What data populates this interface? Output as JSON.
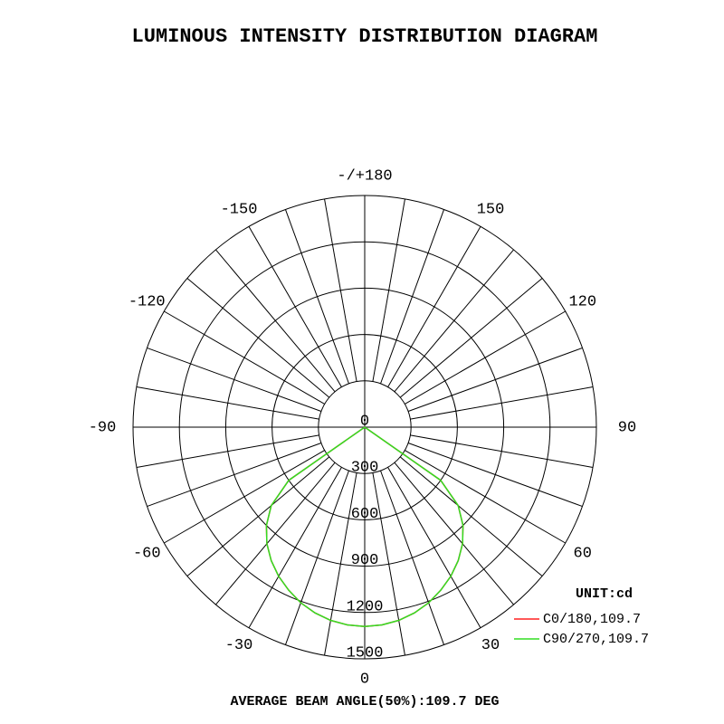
{
  "chart_data": {
    "type": "polar",
    "title": "LUMINOUS INTENSITY DISTRIBUTION DIAGRAM",
    "footer": "AVERAGE BEAM ANGLE(50%):109.7 DEG",
    "unit": "UNIT:cd",
    "rlim": [
      0,
      1500
    ],
    "rticks": [
      0,
      300,
      600,
      900,
      1200,
      1500
    ],
    "angle_ticks": [
      {
        "value": 180,
        "label": "-/+180"
      },
      150,
      120,
      90,
      60,
      30,
      0,
      -30,
      -60,
      -90,
      -120,
      -150
    ],
    "angles": [
      -90,
      -85,
      -80,
      -75,
      -70,
      -65,
      -60,
      -55,
      -50,
      -45,
      -40,
      -35,
      -30,
      -25,
      -20,
      -15,
      -10,
      -5,
      0,
      5,
      10,
      15,
      20,
      25,
      30,
      35,
      40,
      45,
      50,
      55,
      60,
      65,
      70,
      75,
      80,
      85,
      90
    ],
    "series": [
      {
        "name": "C0/180,109.7",
        "color": "#ff2020",
        "values": [
          0,
          0,
          0,
          0,
          0,
          0,
          0,
          600,
          790,
          900,
          985,
          1055,
          1115,
          1165,
          1210,
          1245,
          1270,
          1285,
          1290,
          1285,
          1270,
          1245,
          1210,
          1165,
          1115,
          1055,
          985,
          900,
          790,
          600,
          0,
          0,
          0,
          0,
          0,
          0,
          0
        ]
      },
      {
        "name": "C90/270,109.7",
        "color": "#33dd22",
        "values": [
          0,
          0,
          0,
          0,
          0,
          0,
          0,
          600,
          790,
          900,
          985,
          1055,
          1115,
          1165,
          1210,
          1245,
          1270,
          1285,
          1290,
          1285,
          1270,
          1245,
          1210,
          1165,
          1115,
          1055,
          985,
          900,
          790,
          600,
          0,
          0,
          0,
          0,
          0,
          0,
          0
        ]
      }
    ]
  }
}
